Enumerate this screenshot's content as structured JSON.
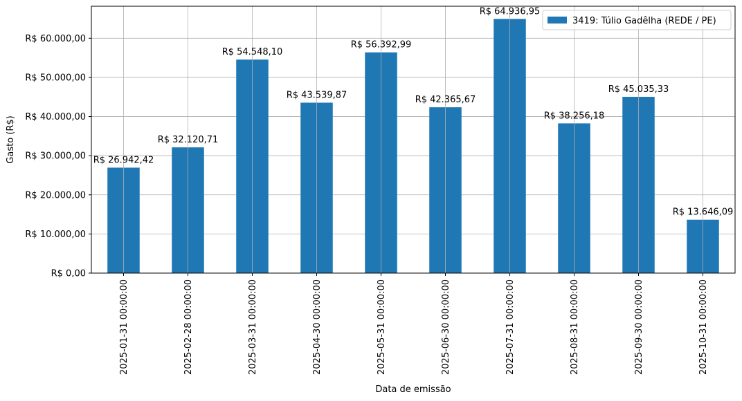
{
  "chart_data": {
    "type": "bar",
    "categories": [
      "2025-01-31 00:00:00",
      "2025-02-28 00:00:00",
      "2025-03-31 00:00:00",
      "2025-04-30 00:00:00",
      "2025-05-31 00:00:00",
      "2025-06-30 00:00:00",
      "2025-07-31 00:00:00",
      "2025-08-31 00:00:00",
      "2025-09-30 00:00:00",
      "2025-10-31 00:00:00"
    ],
    "series": [
      {
        "name": "3419: Túlio Gadêlha (REDE / PE)",
        "color": "#1f77b4",
        "values": [
          26942.42,
          32120.71,
          54548.1,
          43539.87,
          56392.99,
          42365.67,
          64936.95,
          38256.18,
          45035.33,
          13646.09
        ]
      }
    ],
    "data_labels": [
      "R$ 26.942,42",
      "R$ 32.120,71",
      "R$ 54.548,10",
      "R$ 43.539,87",
      "R$ 56.392,99",
      "R$ 42.365,67",
      "R$ 64.936,95",
      "R$ 38.256,18",
      "R$ 45.035,33",
      "R$ 13.646,09"
    ],
    "xlabel": "Data de emissão",
    "ylabel": "Gasto (R$)",
    "ylim": [
      0,
      68183
    ],
    "yticks": [
      0,
      10000,
      20000,
      30000,
      40000,
      50000,
      60000
    ],
    "ytick_labels": [
      "R$ 0,00",
      "R$ 10.000,00",
      "R$ 20.000,00",
      "R$ 30.000,00",
      "R$ 40.000,00",
      "R$ 50.000,00",
      "R$ 60.000,00"
    ],
    "grid": true,
    "legend_position": "top-right"
  }
}
